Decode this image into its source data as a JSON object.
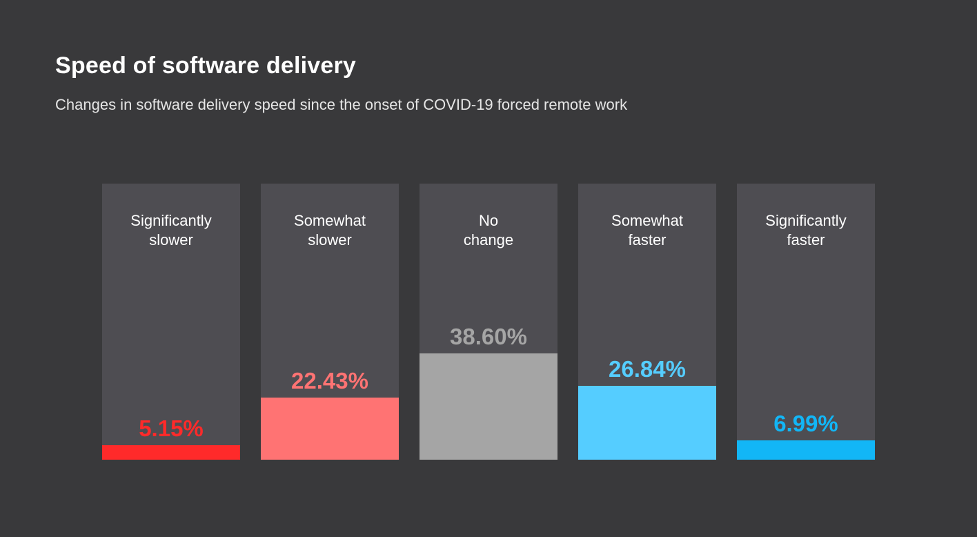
{
  "chart_data": {
    "type": "bar",
    "title": "Speed of software delivery",
    "subtitle": "Changes in software delivery speed since the onset of COVID-19 forced remote work",
    "categories": [
      "Significantly slower",
      "Somewhat slower",
      "No change",
      "Somewhat faster",
      "Significantly faster"
    ],
    "category_lines": [
      [
        "Significantly",
        "slower"
      ],
      [
        "Somewhat",
        "slower"
      ],
      [
        "No",
        "change"
      ],
      [
        "Somewhat",
        "faster"
      ],
      [
        "Significantly",
        "faster"
      ]
    ],
    "values": [
      5.15,
      22.43,
      38.6,
      26.84,
      6.99
    ],
    "value_labels": [
      "5.15%",
      "22.43%",
      "38.60%",
      "26.84%",
      "6.99%"
    ],
    "colors": [
      "#ff2a2a",
      "#ff7373",
      "#a5a5a5",
      "#55cdff",
      "#12b6f6"
    ],
    "ylim": [
      0,
      100
    ],
    "unit": "%",
    "grid": false,
    "background": "#39393b",
    "column_background": "#4e4d52"
  }
}
